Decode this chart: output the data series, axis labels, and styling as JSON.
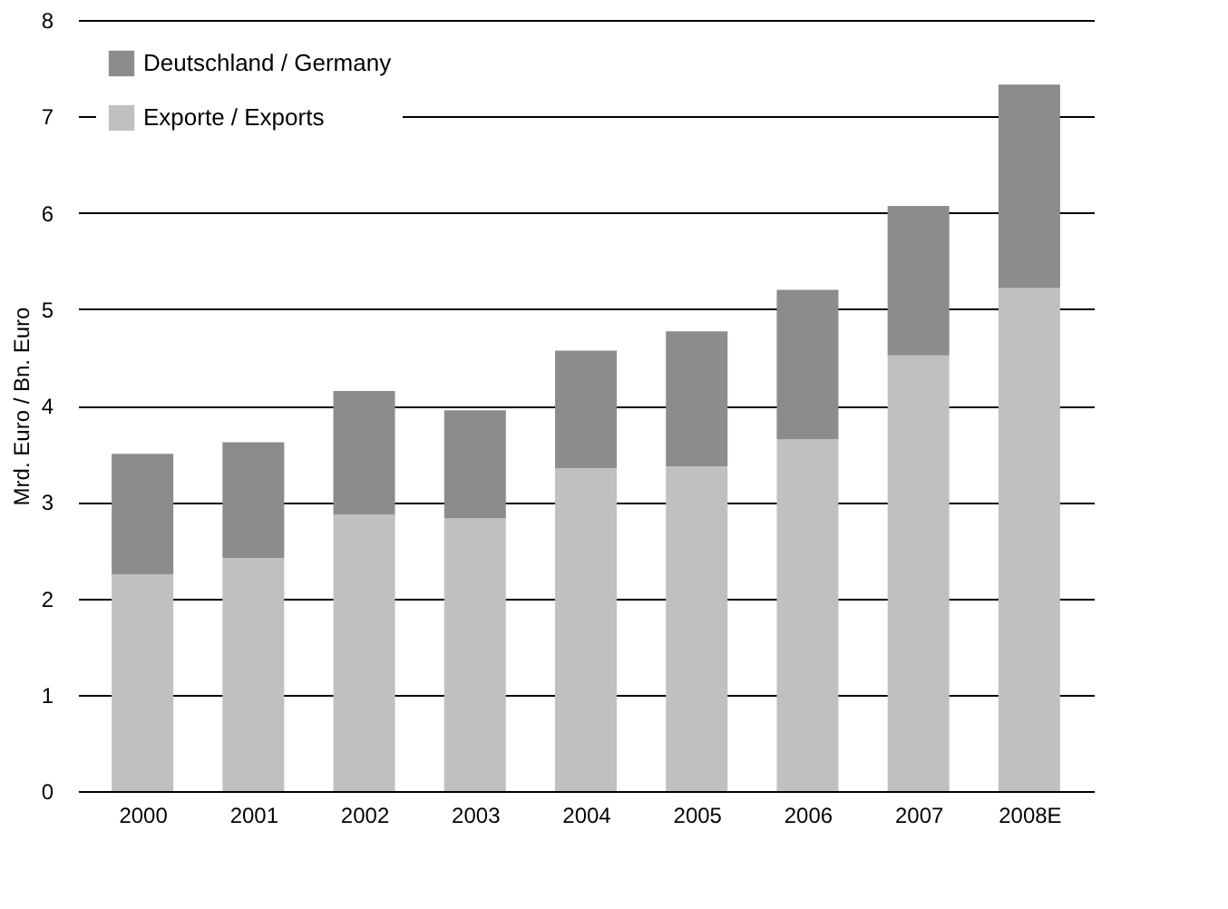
{
  "chart_data": {
    "type": "bar",
    "stacked": true,
    "ylabel": "Mrd. Euro / Bn. Euro",
    "categories": [
      "2000",
      "2001",
      "2002",
      "2003",
      "2004",
      "2005",
      "2006",
      "2007",
      "2008E"
    ],
    "series": [
      {
        "name": "Exporte / Exports",
        "color": "#c0c0c0",
        "values": [
          2.25,
          2.42,
          2.87,
          2.83,
          3.35,
          3.37,
          3.65,
          4.52,
          5.22
        ]
      },
      {
        "name": "Deutschland / Germany",
        "color": "#8c8c8c",
        "values": [
          1.25,
          1.2,
          1.28,
          1.12,
          1.22,
          1.4,
          1.55,
          1.55,
          2.11
        ]
      }
    ],
    "ylim": [
      0,
      8
    ],
    "yticks": [
      0,
      1,
      2,
      3,
      4,
      5,
      6,
      7,
      8
    ],
    "grid": "y",
    "legend": "top left"
  }
}
